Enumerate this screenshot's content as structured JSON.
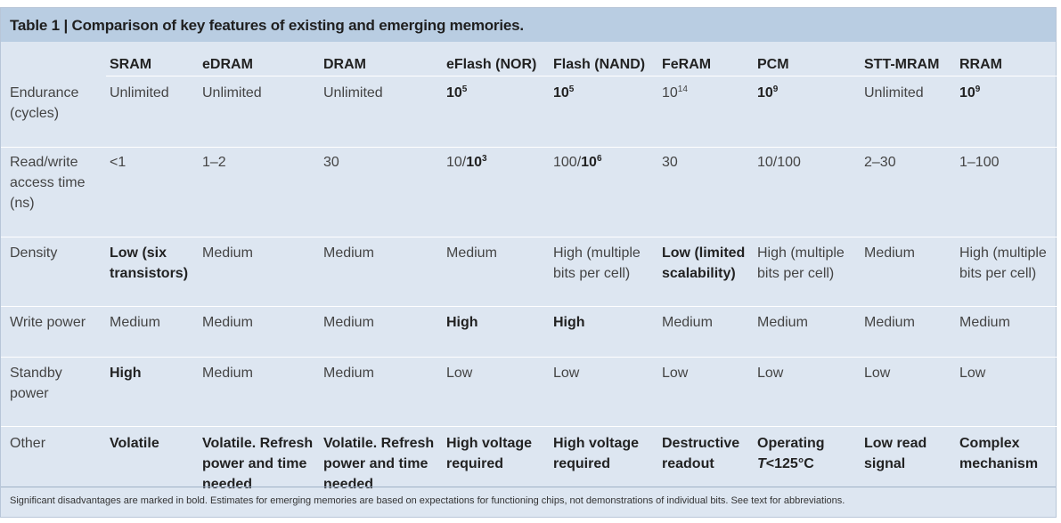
{
  "title": "Table 1 | Comparison of key features of existing and emerging memories.",
  "columns": [
    "SRAM",
    "eDRAM",
    "DRAM",
    "eFlash (NOR)",
    "Flash (NAND)",
    "FeRAM",
    "PCM",
    "STT-MRAM",
    "RRAM"
  ],
  "rows": [
    {
      "label": [
        "Endurance",
        "(cycles)"
      ],
      "cells": [
        {
          "lines": [
            "Unlimited"
          ],
          "bold": false
        },
        {
          "lines": [
            "Unlimited"
          ],
          "bold": false
        },
        {
          "lines": [
            "Unlimited"
          ],
          "bold": false
        },
        {
          "base": "10",
          "sup": "5",
          "bold": true
        },
        {
          "base": "10",
          "sup": "5",
          "bold": true
        },
        {
          "base": "10",
          "sup": "14",
          "bold": false
        },
        {
          "base": "10",
          "sup": "9",
          "bold": true
        },
        {
          "lines": [
            "Unlimited"
          ],
          "bold": false
        },
        {
          "base": "10",
          "sup": "9",
          "bold": true
        }
      ]
    },
    {
      "label": [
        "Read/write",
        "access time",
        "(ns)"
      ],
      "cells": [
        {
          "lines": [
            "<1"
          ],
          "bold": false
        },
        {
          "lines": [
            "1–2"
          ],
          "bold": false
        },
        {
          "lines": [
            "30"
          ],
          "bold": false
        },
        {
          "pre": "10/",
          "base": "10",
          "sup": "3",
          "bold": false,
          "bold_part": true
        },
        {
          "pre": "100/",
          "base": "10",
          "sup": "6",
          "bold": false,
          "bold_part": true
        },
        {
          "lines": [
            "30"
          ],
          "bold": false
        },
        {
          "lines": [
            "10/100"
          ],
          "bold": false
        },
        {
          "lines": [
            "2–30"
          ],
          "bold": false
        },
        {
          "lines": [
            "1–100"
          ],
          "bold": false
        }
      ]
    },
    {
      "label": [
        "Density"
      ],
      "cells": [
        {
          "lines": [
            "Low (six",
            "transistors)"
          ],
          "bold": true
        },
        {
          "lines": [
            "Medium"
          ],
          "bold": false
        },
        {
          "lines": [
            "Medium"
          ],
          "bold": false
        },
        {
          "lines": [
            "Medium"
          ],
          "bold": false
        },
        {
          "lines": [
            "High (multiple",
            "bits per cell)"
          ],
          "bold": false
        },
        {
          "lines": [
            "Low (limited",
            "scalability)"
          ],
          "bold": true
        },
        {
          "lines": [
            "High (multiple",
            "bits per cell)"
          ],
          "bold": false
        },
        {
          "lines": [
            "Medium"
          ],
          "bold": false
        },
        {
          "lines": [
            "High (multiple",
            "bits per cell)"
          ],
          "bold": false
        }
      ]
    },
    {
      "label": [
        "Write power"
      ],
      "cells": [
        {
          "lines": [
            "Medium"
          ],
          "bold": false
        },
        {
          "lines": [
            "Medium"
          ],
          "bold": false
        },
        {
          "lines": [
            "Medium"
          ],
          "bold": false
        },
        {
          "lines": [
            "High"
          ],
          "bold": true
        },
        {
          "lines": [
            "High"
          ],
          "bold": true
        },
        {
          "lines": [
            "Medium"
          ],
          "bold": false
        },
        {
          "lines": [
            "Medium"
          ],
          "bold": false
        },
        {
          "lines": [
            "Medium"
          ],
          "bold": false
        },
        {
          "lines": [
            "Medium"
          ],
          "bold": false
        }
      ]
    },
    {
      "label": [
        "Standby",
        "power"
      ],
      "cells": [
        {
          "lines": [
            "High"
          ],
          "bold": true
        },
        {
          "lines": [
            "Medium"
          ],
          "bold": false
        },
        {
          "lines": [
            "Medium"
          ],
          "bold": false
        },
        {
          "lines": [
            "Low"
          ],
          "bold": false
        },
        {
          "lines": [
            "Low"
          ],
          "bold": false
        },
        {
          "lines": [
            "Low"
          ],
          "bold": false
        },
        {
          "lines": [
            "Low"
          ],
          "bold": false
        },
        {
          "lines": [
            "Low"
          ],
          "bold": false
        },
        {
          "lines": [
            "Low"
          ],
          "bold": false
        }
      ]
    },
    {
      "label": [
        "Other"
      ],
      "cells": [
        {
          "lines": [
            "Volatile"
          ],
          "bold": true
        },
        {
          "lines": [
            "Volatile. Refresh",
            "power and time",
            "needed"
          ],
          "bold": true
        },
        {
          "lines": [
            "Volatile. Refresh",
            "power and time",
            "needed"
          ],
          "bold": true
        },
        {
          "lines": [
            "High voltage",
            "required"
          ],
          "bold": true
        },
        {
          "lines": [
            "High voltage",
            "required"
          ],
          "bold": true
        },
        {
          "lines": [
            "Destructive",
            "readout"
          ],
          "bold": true
        },
        {
          "lines": [
            "Operating",
            "T<125°C"
          ],
          "bold": true,
          "italic_first_char_line2": true
        },
        {
          "lines": [
            "Low read",
            "signal"
          ],
          "bold": true
        },
        {
          "lines": [
            "Complex",
            "mechanism"
          ],
          "bold": true
        }
      ]
    }
  ],
  "footnote": "Significant disadvantages are marked in bold. Estimates for emerging memories are based on expectations for functioning chips, not demonstrations of individual bits. See text for abbreviations."
}
